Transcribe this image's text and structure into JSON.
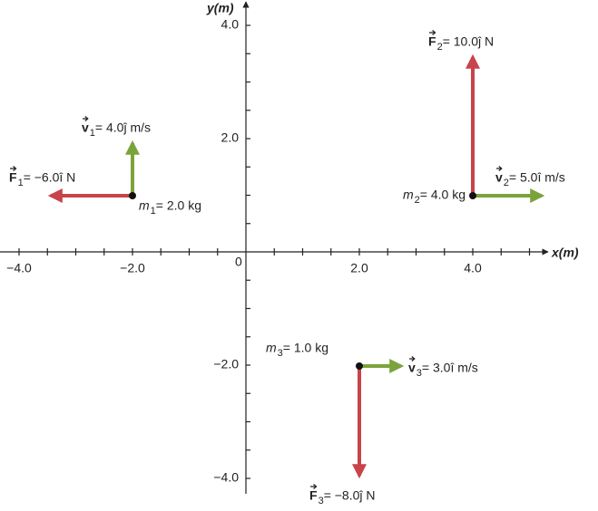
{
  "axes": {
    "x_label": "x(m)",
    "y_label": "y(m)",
    "origin": "0",
    "x_ticks": [
      "−4.0",
      "−2.0",
      "2.0",
      "4.0"
    ],
    "y_ticks": [
      "4.0",
      "2.0",
      "−2.0",
      "−4.0"
    ]
  },
  "objects": [
    {
      "mass": {
        "symbol": "m",
        "subscript": "1",
        "text": " = 2.0 kg"
      },
      "velocity": {
        "symbol": "v",
        "subscript": "1",
        "text": " = 4.0ĵ m/s"
      },
      "force": {
        "symbol": "F",
        "subscript": "1",
        "text": " = −6.0î N"
      }
    },
    {
      "mass": {
        "symbol": "m",
        "subscript": "2",
        "text": " = 4.0 kg"
      },
      "velocity": {
        "symbol": "v",
        "subscript": "2",
        "text": " = 5.0î m/s"
      },
      "force": {
        "symbol": "F",
        "subscript": "2",
        "text": " = 10.0ĵ N"
      }
    },
    {
      "mass": {
        "symbol": "m",
        "subscript": "3",
        "text": " = 1.0 kg"
      },
      "velocity": {
        "symbol": "v",
        "subscript": "3",
        "text": " = 3.0î m/s"
      },
      "force": {
        "symbol": "F",
        "subscript": "3",
        "text": " = −8.0ĵ N"
      }
    }
  ]
}
